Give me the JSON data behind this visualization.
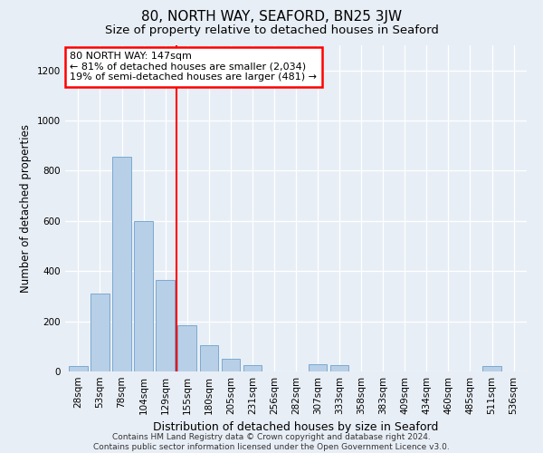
{
  "title": "80, NORTH WAY, SEAFORD, BN25 3JW",
  "subtitle": "Size of property relative to detached houses in Seaford",
  "xlabel": "Distribution of detached houses by size in Seaford",
  "ylabel": "Number of detached properties",
  "categories": [
    "28sqm",
    "53sqm",
    "78sqm",
    "104sqm",
    "129sqm",
    "155sqm",
    "180sqm",
    "205sqm",
    "231sqm",
    "256sqm",
    "282sqm",
    "307sqm",
    "333sqm",
    "358sqm",
    "383sqm",
    "409sqm",
    "434sqm",
    "460sqm",
    "485sqm",
    "511sqm",
    "536sqm"
  ],
  "values": [
    20,
    310,
    855,
    600,
    365,
    185,
    105,
    50,
    25,
    0,
    0,
    30,
    25,
    0,
    0,
    0,
    0,
    0,
    0,
    20,
    0
  ],
  "bar_color": "#b8cfe8",
  "bar_edgecolor": "#7aaad0",
  "vline_color": "red",
  "annotation_text": "80 NORTH WAY: 147sqm\n← 81% of detached houses are smaller (2,034)\n19% of semi-detached houses are larger (481) →",
  "annotation_box_color": "white",
  "annotation_box_edgecolor": "red",
  "ylim": [
    0,
    1300
  ],
  "yticks": [
    0,
    200,
    400,
    600,
    800,
    1000,
    1200
  ],
  "bg_color": "#e8eef6",
  "plot_bg_color": "#e8eef6",
  "footer_line1": "Contains HM Land Registry data © Crown copyright and database right 2024.",
  "footer_line2": "Contains public sector information licensed under the Open Government Licence v3.0.",
  "title_fontsize": 11,
  "subtitle_fontsize": 9.5,
  "xlabel_fontsize": 9,
  "ylabel_fontsize": 8.5,
  "tick_fontsize": 7.5,
  "annotation_fontsize": 8,
  "footer_fontsize": 6.5,
  "vline_pos": 4.5
}
